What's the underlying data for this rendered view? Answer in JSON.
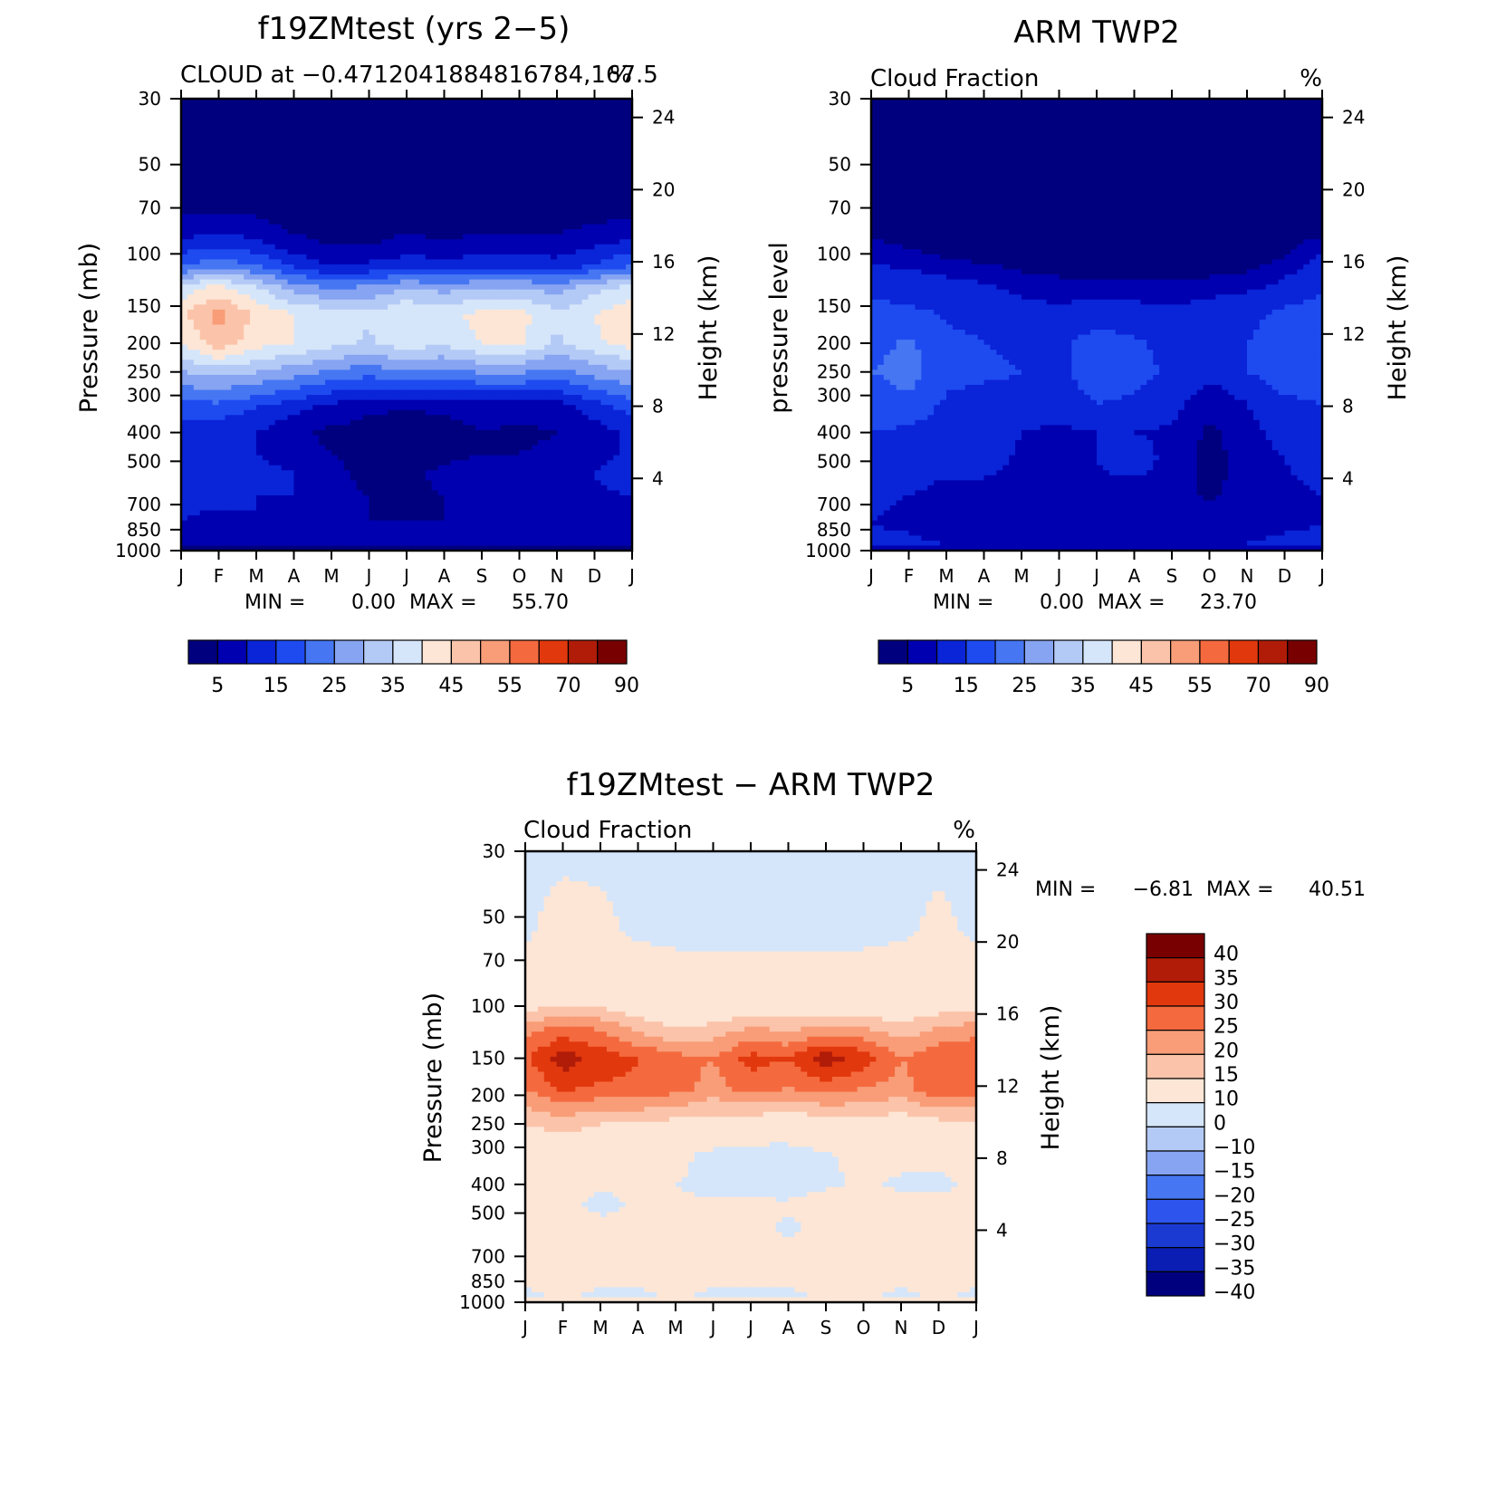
{
  "palettes": {
    "abs": [
      "#00007f",
      "#0000b0",
      "#0a24d8",
      "#1e4bf0",
      "#4676f2",
      "#86a4f2",
      "#b4caf6",
      "#d6e6fa",
      "#fde6d6",
      "#fbc4aa",
      "#f89d78",
      "#f46a3e",
      "#e2380e",
      "#b01c08",
      "#780000"
    ],
    "diff": [
      "#00007f",
      "#0a1eb4",
      "#1a3ad2",
      "#2d55ee",
      "#4676f2",
      "#86a4f2",
      "#b4caf6",
      "#d6e6fa",
      "#fde6d6",
      "#fbc4aa",
      "#f89d78",
      "#f46a3e",
      "#e2380e",
      "#b01c08",
      "#780000"
    ]
  },
  "chart_data": [
    {
      "type": "heatmap",
      "title": "f19ZMtest (yrs 2−5)",
      "subtitle_left": "CLOUD at −0.4712041884816784,167.5",
      "subtitle_right": "%",
      "ylabel": "Pressure (mb)",
      "ylabel_right": "Height (km)",
      "x_ticks": [
        "J",
        "F",
        "M",
        "A",
        "M",
        "J",
        "J",
        "A",
        "S",
        "O",
        "N",
        "D",
        "J"
      ],
      "y_ticks": [
        "30",
        "50",
        "70",
        "100",
        "150",
        "200",
        "250",
        "300",
        "400",
        "500",
        "700",
        "850",
        "1000"
      ],
      "y_tick_values": [
        30,
        50,
        70,
        100,
        150,
        200,
        250,
        300,
        400,
        500,
        700,
        850,
        1000
      ],
      "y_right_ticks": [
        "24",
        "20",
        "16",
        "12",
        "8",
        "4"
      ],
      "y_right_tick_values": [
        24,
        20,
        16,
        12,
        8,
        4
      ],
      "levels": [
        5,
        10,
        15,
        20,
        25,
        30,
        35,
        40,
        45,
        50,
        55,
        60,
        70,
        80,
        90
      ],
      "colorbar_labels": [
        "5",
        "15",
        "25",
        "35",
        "45",
        "55",
        "70",
        "90"
      ],
      "palette": "abs",
      "min_label": "MIN =",
      "min_value": "0.00",
      "max_label": "MAX =",
      "max_value": "55.70",
      "grid": {
        "months": [
          1,
          2,
          3,
          4,
          5,
          6,
          7,
          8,
          9,
          10,
          11,
          12,
          13
        ],
        "pressure": [
          30,
          70,
          90,
          110,
          130,
          160,
          200,
          260,
          330,
          400,
          470,
          550,
          650,
          800,
          950,
          1000
        ],
        "values": [
          [
            0,
            0,
            0,
            0,
            0,
            0,
            0,
            0,
            0,
            0,
            0,
            0,
            0
          ],
          [
            3,
            4,
            3,
            1,
            1,
            1,
            1,
            1,
            1,
            1,
            1,
            2,
            3
          ],
          [
            10,
            12,
            10,
            6,
            4,
            4,
            6,
            5,
            6,
            6,
            6,
            8,
            10
          ],
          [
            20,
            24,
            20,
            14,
            10,
            11,
            13,
            12,
            13,
            13,
            12,
            16,
            20
          ],
          [
            37,
            42,
            36,
            28,
            24,
            26,
            30,
            28,
            30,
            30,
            28,
            33,
            37
          ],
          [
            44,
            52,
            44,
            40,
            38,
            36,
            40,
            38,
            42,
            42,
            36,
            40,
            44
          ],
          [
            40,
            48,
            42,
            40,
            37,
            34,
            38,
            36,
            40,
            41,
            34,
            39,
            42
          ],
          [
            28,
            30,
            28,
            25,
            22,
            20,
            22,
            21,
            23,
            23,
            21,
            25,
            28
          ],
          [
            18,
            18,
            15,
            12,
            8,
            6,
            5,
            6,
            7,
            7,
            7,
            12,
            17
          ],
          [
            12,
            12,
            10,
            6,
            4,
            3,
            2,
            3,
            5,
            4,
            5,
            8,
            11
          ],
          [
            12,
            12,
            10,
            7,
            5,
            4,
            3,
            4,
            5,
            5,
            6,
            8,
            11
          ],
          [
            14,
            14,
            12,
            10,
            6,
            4,
            4,
            6,
            6,
            6,
            7,
            10,
            13
          ],
          [
            11,
            11,
            10,
            10,
            6,
            5,
            4,
            5,
            5,
            6,
            6,
            9,
            10
          ],
          [
            10,
            9,
            10,
            9,
            6,
            5,
            5,
            5,
            5,
            5,
            6,
            8,
            9
          ],
          [
            8,
            8,
            8,
            8,
            6,
            6,
            6,
            5,
            5,
            6,
            6,
            8,
            8
          ],
          [
            1,
            1,
            1,
            1,
            1,
            1,
            1,
            1,
            1,
            1,
            1,
            1,
            1
          ]
        ]
      }
    },
    {
      "type": "heatmap",
      "title": "ARM TWP2",
      "subtitle_left": "Cloud Fraction",
      "subtitle_right": "%",
      "ylabel": "pressure level",
      "ylabel_right": "Height (km)",
      "x_ticks": [
        "J",
        "F",
        "M",
        "A",
        "M",
        "J",
        "J",
        "A",
        "S",
        "O",
        "N",
        "D",
        "J"
      ],
      "y_ticks": [
        "30",
        "50",
        "70",
        "100",
        "150",
        "200",
        "250",
        "300",
        "400",
        "500",
        "700",
        "850",
        "1000"
      ],
      "y_tick_values": [
        30,
        50,
        70,
        100,
        150,
        200,
        250,
        300,
        400,
        500,
        700,
        850,
        1000
      ],
      "y_right_ticks": [
        "24",
        "20",
        "16",
        "12",
        "8",
        "4"
      ],
      "y_right_tick_values": [
        24,
        20,
        16,
        12,
        8,
        4
      ],
      "levels": [
        5,
        10,
        15,
        20,
        25,
        30,
        35,
        40,
        45,
        50,
        55,
        60,
        70,
        80,
        90
      ],
      "colorbar_labels": [
        "5",
        "15",
        "25",
        "35",
        "45",
        "55",
        "70",
        "90"
      ],
      "palette": "abs",
      "min_label": "MIN =",
      "min_value": "0.00",
      "max_label": "MAX =",
      "max_value": "23.70",
      "grid": {
        "months": [
          1,
          2,
          3,
          4,
          5,
          6,
          7,
          8,
          9,
          10,
          11,
          12,
          13
        ],
        "pressure": [
          30,
          80,
          100,
          120,
          150,
          200,
          250,
          320,
          400,
          500,
          650,
          800,
          950,
          1000
        ],
        "values": [
          [
            0,
            0,
            0,
            0,
            0,
            0,
            0,
            0,
            0,
            0,
            0,
            0,
            0
          ],
          [
            2,
            1,
            1,
            0,
            0,
            0,
            0,
            0,
            0,
            0,
            0,
            1,
            2
          ],
          [
            8,
            6,
            4,
            2,
            1,
            1,
            1,
            1,
            1,
            1,
            2,
            4,
            10
          ],
          [
            13,
            12,
            10,
            9,
            6,
            5,
            5,
            5,
            4,
            5,
            6,
            10,
            14
          ],
          [
            16,
            15,
            14,
            14,
            12,
            10,
            12,
            11,
            10,
            12,
            14,
            15,
            16
          ],
          [
            18,
            21,
            16,
            15,
            14,
            14,
            17,
            16,
            13,
            14,
            15,
            17,
            16
          ],
          [
            20,
            22,
            17,
            16,
            15,
            14,
            18,
            17,
            14,
            12,
            15,
            18,
            18
          ],
          [
            17,
            19,
            14,
            13,
            13,
            12,
            15,
            14,
            12,
            6,
            10,
            14,
            15
          ],
          [
            15,
            14,
            12,
            13,
            10,
            9,
            10,
            10,
            9,
            4,
            8,
            12,
            14
          ],
          [
            13,
            12,
            11,
            12,
            9,
            9,
            10,
            13,
            8,
            3,
            7,
            10,
            12
          ],
          [
            11,
            10,
            9,
            8,
            7,
            8,
            8,
            7,
            8,
            4,
            7,
            9,
            10
          ],
          [
            10,
            9,
            7,
            7,
            8,
            8,
            8,
            8,
            8,
            7,
            8,
            9,
            10
          ],
          [
            11,
            11,
            10,
            10,
            10,
            10,
            10,
            10,
            10,
            10,
            10,
            11,
            11
          ],
          [
            8,
            8,
            8,
            8,
            8,
            8,
            8,
            8,
            8,
            8,
            8,
            8,
            8
          ]
        ]
      }
    },
    {
      "type": "heatmap",
      "title": "f19ZMtest − ARM TWP2",
      "subtitle_left": "Cloud Fraction",
      "subtitle_right": "%",
      "ylabel": "Pressure (mb)",
      "ylabel_right": "Height (km)",
      "x_ticks": [
        "J",
        "F",
        "M",
        "A",
        "M",
        "J",
        "J",
        "A",
        "S",
        "O",
        "N",
        "D",
        "J"
      ],
      "y_ticks": [
        "30",
        "50",
        "70",
        "100",
        "150",
        "200",
        "250",
        "300",
        "400",
        "500",
        "700",
        "850",
        "1000"
      ],
      "y_tick_values": [
        30,
        50,
        70,
        100,
        150,
        200,
        250,
        300,
        400,
        500,
        700,
        850,
        1000
      ],
      "y_right_ticks": [
        "24",
        "20",
        "16",
        "12",
        "8",
        "4"
      ],
      "y_right_tick_values": [
        24,
        20,
        16,
        12,
        8,
        4
      ],
      "levels": [
        -40,
        -35,
        -30,
        -25,
        -20,
        -15,
        -10,
        0,
        10,
        15,
        20,
        25,
        30,
        35,
        40
      ],
      "colorbar_labels": [
        "40",
        "35",
        "30",
        "25",
        "20",
        "15",
        "10",
        "0",
        "−10",
        "−15",
        "−20",
        "−25",
        "−30",
        "−35",
        "−40"
      ],
      "palette": "diff",
      "min_label": "MIN =",
      "min_value": "−6.81",
      "max_label": "MAX =",
      "max_value": "40.51",
      "grid": {
        "months": [
          1,
          2,
          3,
          4,
          5,
          6,
          7,
          8,
          9,
          10,
          11,
          12,
          13
        ],
        "pressure": [
          30,
          55,
          75,
          100,
          120,
          150,
          190,
          250,
          320,
          400,
          470,
          550,
          800,
          950,
          1000
        ],
        "values": [
          [
            -1,
            -1,
            -1,
            -1,
            -1,
            -1,
            -1,
            -1,
            -1,
            -1,
            -1,
            -1,
            -1
          ],
          [
            -1,
            2,
            1,
            -1,
            -1,
            -1,
            -1,
            -1,
            -1,
            -1,
            -1,
            1,
            -1
          ],
          [
            2,
            4,
            3,
            2,
            1,
            1,
            1,
            1,
            1,
            1,
            2,
            3,
            2
          ],
          [
            8,
            10,
            9,
            6,
            4,
            4,
            6,
            5,
            6,
            6,
            5,
            7,
            8
          ],
          [
            18,
            22,
            20,
            14,
            10,
            12,
            16,
            14,
            17,
            16,
            12,
            16,
            18
          ],
          [
            24,
            33,
            28,
            25,
            22,
            20,
            27,
            25,
            33,
            28,
            20,
            24,
            25
          ],
          [
            20,
            26,
            24,
            24,
            22,
            18,
            22,
            20,
            22,
            20,
            18,
            24,
            22
          ],
          [
            10,
            12,
            10,
            9,
            8,
            7,
            6,
            5,
            7,
            8,
            6,
            8,
            10
          ],
          [
            4,
            5,
            4,
            3,
            2,
            -2,
            -3,
            -3,
            -1,
            2,
            2,
            2,
            3
          ],
          [
            2,
            2,
            1,
            1,
            0,
            -2,
            -2,
            -3,
            -1,
            1,
            -1,
            -2,
            2
          ],
          [
            3,
            2,
            -2,
            1,
            1,
            1,
            1,
            1,
            3,
            3,
            2,
            3,
            2
          ],
          [
            3,
            3,
            2,
            2,
            1,
            1,
            2,
            -1,
            2,
            2,
            2,
            3,
            3
          ],
          [
            2,
            2,
            2,
            2,
            2,
            2,
            2,
            2,
            2,
            2,
            2,
            2,
            2
          ],
          [
            -1,
            1,
            -1,
            -1,
            1,
            -1,
            -1,
            -1,
            1,
            1,
            -1,
            1,
            -1
          ],
          [
            1,
            1,
            1,
            1,
            1,
            1,
            1,
            1,
            1,
            1,
            1,
            1,
            1
          ]
        ]
      }
    }
  ]
}
